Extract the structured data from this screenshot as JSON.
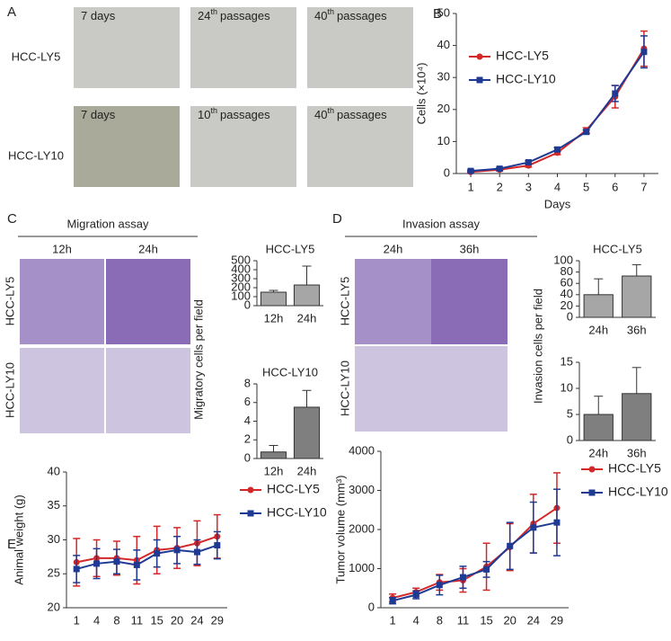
{
  "panels": {
    "letters": [
      "A",
      "B",
      "C",
      "D",
      "E"
    ],
    "a": {
      "rows": [
        "HCC-LY5",
        "HCC-LY10"
      ],
      "captions": [
        {
          "main": "7 days"
        },
        {
          "main": "24",
          "sup": "th",
          "rest": "passages"
        },
        {
          "main": "40",
          "sup": "th",
          "rest": "passages"
        },
        {
          "main": "7 days"
        },
        {
          "main": "10",
          "sup": "th",
          "rest": "passages"
        },
        {
          "main": "40",
          "sup": "th",
          "rest": "passages"
        }
      ]
    },
    "c": {
      "title": "Migration assay",
      "columns": [
        "12h",
        "24h"
      ],
      "rows": [
        "HCC-LY5",
        "HCC-LY10"
      ]
    },
    "d": {
      "title": "Invasion assay",
      "columns": [
        "24h",
        "36h"
      ],
      "rows": [
        "HCC-LY5",
        "HCC-LY10"
      ]
    }
  },
  "chart_data": [
    {
      "type": "line",
      "xlabel": "Days",
      "ylabel": "Cells (×10⁴)",
      "x": [
        1,
        2,
        3,
        4,
        5,
        6,
        7
      ],
      "xlim": [
        0.5,
        7.5
      ],
      "xticks": [
        1,
        2,
        3,
        4,
        5,
        6,
        7
      ],
      "ylim": [
        0,
        50
      ],
      "yticks": [
        0,
        10,
        20,
        30,
        40,
        50
      ],
      "legend": "upper left",
      "series": [
        {
          "name": "HCC-LY5",
          "color": "#d62728",
          "marker": "circle",
          "values": [
            0.5,
            1.2,
            2.5,
            6.5,
            13.5,
            24,
            39
          ],
          "errors": [
            0.3,
            0.4,
            0.5,
            0.6,
            0.8,
            3.5,
            5.5
          ]
        },
        {
          "name": "HCC-LY10",
          "color": "#1f3a93",
          "marker": "square",
          "values": [
            0.8,
            1.5,
            3.5,
            7.5,
            13,
            25,
            38
          ],
          "errors": [
            0.3,
            0.4,
            0.5,
            0.6,
            0.6,
            2.5,
            5
          ]
        }
      ]
    },
    {
      "type": "bar",
      "title": "HCC-LY5",
      "ylabel": "Migratory cells per field",
      "categories": [
        "12h",
        "24h"
      ],
      "values": [
        150,
        230
      ],
      "errors": [
        20,
        210
      ],
      "color": "#a6a6a6",
      "ylim": [
        0,
        500
      ],
      "yticks": [
        0,
        100,
        200,
        300,
        400,
        500
      ]
    },
    {
      "type": "bar",
      "title": "HCC-LY10",
      "categories": [
        "12h",
        "24h"
      ],
      "values": [
        0.7,
        5.5
      ],
      "errors": [
        0.7,
        1.8
      ],
      "color": "#7f7f7f",
      "ylim": [
        0,
        8
      ],
      "yticks": [
        0,
        2,
        4,
        6,
        8
      ]
    },
    {
      "type": "bar",
      "title": "HCC-LY5",
      "ylabel": "Invasion cells per field",
      "categories": [
        "24h",
        "36h"
      ],
      "values": [
        40,
        73
      ],
      "errors": [
        28,
        20
      ],
      "color": "#a6a6a6",
      "ylim": [
        0,
        100
      ],
      "yticks": [
        0,
        20,
        40,
        60,
        80,
        100
      ]
    },
    {
      "type": "bar",
      "categories": [
        "24h",
        "36h"
      ],
      "values": [
        5,
        9
      ],
      "errors": [
        3.5,
        5
      ],
      "color": "#7f7f7f",
      "ylim": [
        0,
        15
      ],
      "yticks": [
        0,
        5,
        10,
        15
      ]
    },
    {
      "type": "line",
      "ylabel": "Animal weight (g)",
      "categories": [
        1,
        4,
        8,
        11,
        15,
        20,
        24,
        29
      ],
      "ylim": [
        20,
        40
      ],
      "yticks": [
        20,
        25,
        30,
        35,
        40
      ],
      "legend": "right",
      "series": [
        {
          "name": "HCC-LY5",
          "color": "#d62728",
          "marker": "circle",
          "values": [
            26.7,
            27.3,
            27.3,
            27,
            28.5,
            28.8,
            29.5,
            30.5
          ],
          "errors": [
            3.5,
            2.7,
            2.5,
            3.5,
            3.5,
            3,
            3.3,
            3.2
          ]
        },
        {
          "name": "HCC-LY10",
          "color": "#1f3a93",
          "marker": "square",
          "values": [
            25.7,
            26.5,
            26.8,
            26.3,
            28,
            28.5,
            28.2,
            29.2
          ],
          "errors": [
            2,
            2.2,
            1.8,
            2.2,
            2,
            2,
            1.8,
            2
          ]
        }
      ]
    },
    {
      "type": "line",
      "ylabel": "Tumor volume (mm³)",
      "categories": [
        1,
        4,
        8,
        11,
        15,
        20,
        24,
        29
      ],
      "ylim": [
        0,
        4000
      ],
      "yticks": [
        0,
        1000,
        2000,
        3000,
        4000
      ],
      "legend": "right",
      "series": [
        {
          "name": "HCC-LY5",
          "color": "#d62728",
          "marker": "circle",
          "values": [
            250,
            400,
            650,
            700,
            1050,
            1550,
            2150,
            2550
          ],
          "errors": [
            100,
            100,
            200,
            300,
            600,
            600,
            750,
            900
          ]
        },
        {
          "name": "HCC-LY10",
          "color": "#1f3a93",
          "marker": "square",
          "values": [
            180,
            330,
            580,
            780,
            980,
            1580,
            2050,
            2180
          ],
          "errors": [
            80,
            100,
            250,
            280,
            200,
            600,
            650,
            850
          ]
        }
      ]
    }
  ]
}
